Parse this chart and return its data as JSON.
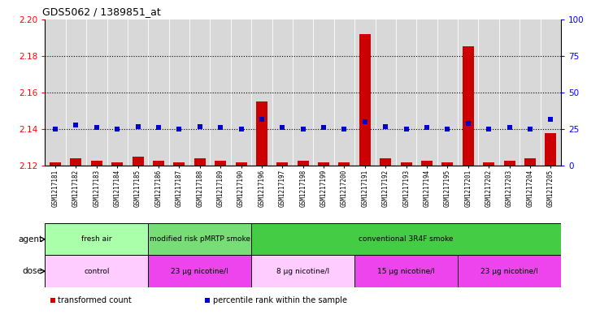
{
  "title": "GDS5062 / 1389851_at",
  "samples": [
    "GSM1217181",
    "GSM1217182",
    "GSM1217183",
    "GSM1217184",
    "GSM1217185",
    "GSM1217186",
    "GSM1217187",
    "GSM1217188",
    "GSM1217189",
    "GSM1217190",
    "GSM1217196",
    "GSM1217197",
    "GSM1217198",
    "GSM1217199",
    "GSM1217200",
    "GSM1217191",
    "GSM1217192",
    "GSM1217193",
    "GSM1217194",
    "GSM1217195",
    "GSM1217201",
    "GSM1217202",
    "GSM1217203",
    "GSM1217204",
    "GSM1217205"
  ],
  "red_values": [
    2.122,
    2.124,
    2.123,
    2.122,
    2.125,
    2.123,
    2.122,
    2.124,
    2.123,
    2.122,
    2.155,
    2.122,
    2.123,
    2.122,
    2.122,
    2.192,
    2.124,
    2.122,
    2.123,
    2.122,
    2.185,
    2.122,
    2.123,
    2.124,
    2.138
  ],
  "blue_values": [
    25,
    28,
    26,
    25,
    27,
    26,
    25,
    27,
    26,
    25,
    32,
    26,
    25,
    26,
    25,
    30,
    27,
    25,
    26,
    25,
    29,
    25,
    26,
    25,
    32
  ],
  "ylim_left": [
    2.12,
    2.2
  ],
  "ylim_right": [
    0,
    100
  ],
  "yticks_left": [
    2.12,
    2.14,
    2.16,
    2.18,
    2.2
  ],
  "yticks_right": [
    0,
    25,
    50,
    75,
    100
  ],
  "hlines": [
    2.14,
    2.16,
    2.18
  ],
  "agent_groups": [
    {
      "label": "fresh air",
      "start": 0,
      "end": 4,
      "color": "#AAFFAA"
    },
    {
      "label": "modified risk pMRTP smoke",
      "start": 5,
      "end": 9,
      "color": "#77DD77"
    },
    {
      "label": "conventional 3R4F smoke",
      "start": 10,
      "end": 24,
      "color": "#44CC44"
    }
  ],
  "dose_groups": [
    {
      "label": "control",
      "start": 0,
      "end": 4,
      "color": "#FFCCFF"
    },
    {
      "label": "23 μg nicotine/l",
      "start": 5,
      "end": 9,
      "color": "#EE44EE"
    },
    {
      "label": "8 μg nicotine/l",
      "start": 10,
      "end": 14,
      "color": "#FFCCFF"
    },
    {
      "label": "15 μg nicotine/l",
      "start": 15,
      "end": 19,
      "color": "#EE44EE"
    },
    {
      "label": "23 μg nicotine/l",
      "start": 20,
      "end": 24,
      "color": "#EE44EE"
    }
  ],
  "bar_color": "#CC0000",
  "dot_color": "#0000CC",
  "bg_color": "#D8D8D8",
  "plot_bg": "#FFFFFF",
  "grid_color": "#888888",
  "legend_items": [
    {
      "label": "transformed count",
      "color": "#CC0000",
      "marker": "s"
    },
    {
      "label": "percentile rank within the sample",
      "color": "#0000CC",
      "marker": "s"
    }
  ]
}
